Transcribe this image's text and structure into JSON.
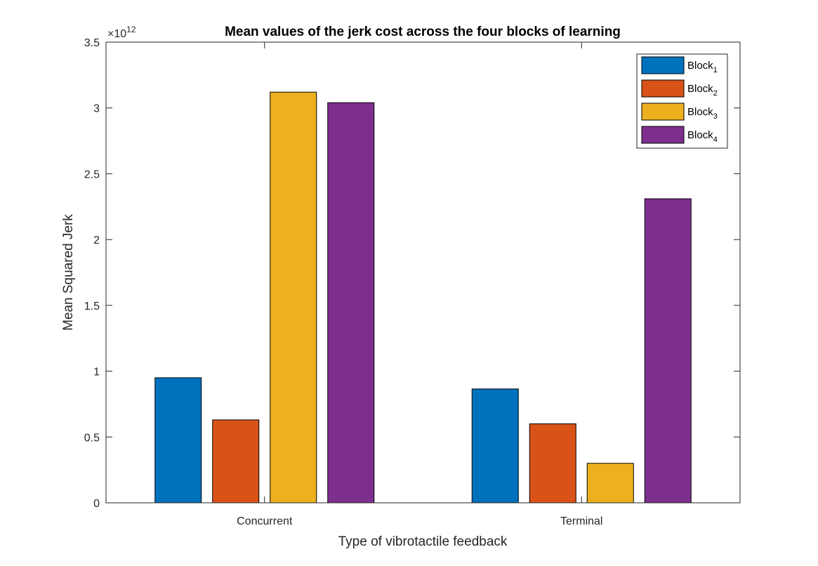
{
  "chart_data": {
    "type": "bar",
    "title": "Mean values of the jerk cost across the four blocks of learning",
    "xlabel": "Type of vibrotactile feedback",
    "ylabel": "Mean Squared Jerk",
    "categories": [
      "Concurrent",
      "Terminal"
    ],
    "series": [
      {
        "name": "Block",
        "subscript": "1",
        "color": "#0072BD",
        "values": [
          950000000000,
          865000000000
        ]
      },
      {
        "name": "Block",
        "subscript": "2",
        "color": "#D95319",
        "values": [
          630000000000,
          600000000000
        ]
      },
      {
        "name": "Block",
        "subscript": "3",
        "color": "#EDB120",
        "values": [
          3120000000000,
          300000000000
        ]
      },
      {
        "name": "Block",
        "subscript": "4",
        "color": "#7E2F8E",
        "values": [
          3040000000000,
          2310000000000
        ]
      }
    ],
    "ylim": [
      0,
      3500000000000
    ],
    "y_scale_exponent": {
      "base": "×10",
      "power": "12"
    },
    "y_ticks": [
      0,
      0.5,
      1,
      1.5,
      2,
      2.5,
      3,
      3.5
    ],
    "y_tick_labels": [
      "0",
      "0.5",
      "1",
      "1.5",
      "2",
      "2.5",
      "3",
      "3.5"
    ],
    "grid": false,
    "legend_position": "top-right"
  }
}
